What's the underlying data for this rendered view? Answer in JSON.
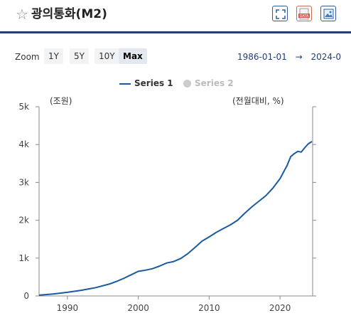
{
  "header": {
    "title": "광의통화(M2)",
    "buttons": [
      "expand-icon",
      "data-download-icon",
      "image-download-icon"
    ]
  },
  "zoom": {
    "label": "Zoom",
    "options": [
      "1Y",
      "5Y",
      "10Y",
      "Max"
    ],
    "active": "Max"
  },
  "date_range": {
    "from": "1986-01-01",
    "arrow": "→",
    "to": "2024-0"
  },
  "colors": {
    "series1": "#1a5a9e",
    "series2_disabled": "#cccccc",
    "accent": "#1f3e73"
  },
  "chart_data": {
    "type": "line",
    "title": "",
    "xlabel": "",
    "ylabel": "(조원)",
    "ylabel_right": "(전월대비, %)",
    "xlim": [
      1986,
      2024.6
    ],
    "ylim": [
      0,
      5000
    ],
    "yticks": [
      0,
      1000,
      2000,
      3000,
      4000,
      5000
    ],
    "ytick_labels": [
      "0",
      "1k",
      "2k",
      "3k",
      "4k",
      "5k"
    ],
    "xticks": [
      1990,
      2000,
      2010,
      2020
    ],
    "grid": false,
    "legend": "top-center",
    "series": [
      {
        "name": "Series 1",
        "visible": true,
        "x": [
          1986,
          1988,
          1990,
          1992,
          1994,
          1996,
          1997,
          1998,
          1999,
          2000,
          2001,
          2002,
          2003,
          2004,
          2005,
          2006,
          2007,
          2008,
          2009,
          2010,
          2011,
          2012,
          2013,
          2014,
          2015,
          2016,
          2017,
          2018,
          2019,
          2020,
          2021,
          2021.5,
          2022,
          2022.5,
          2023,
          2023.5,
          2024,
          2024.5
        ],
        "values": [
          20,
          50,
          95,
          150,
          220,
          320,
          390,
          470,
          560,
          650,
          680,
          720,
          790,
          870,
          910,
          990,
          1120,
          1280,
          1450,
          1560,
          1680,
          1780,
          1880,
          2000,
          2180,
          2350,
          2500,
          2650,
          2850,
          3100,
          3450,
          3680,
          3760,
          3820,
          3800,
          3920,
          4020,
          4080
        ]
      },
      {
        "name": "Series 2",
        "visible": false,
        "values": []
      }
    ]
  }
}
